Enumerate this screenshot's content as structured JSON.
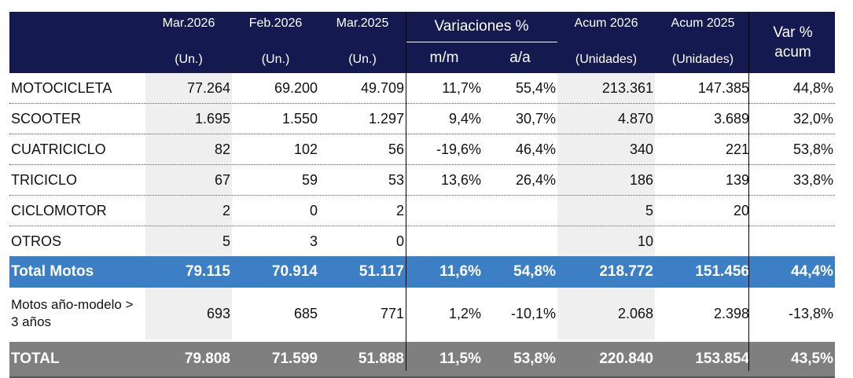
{
  "header": {
    "col1": {
      "top": "Mar.2026",
      "bottom": "(Un.)"
    },
    "col2": {
      "top": "Feb.2026",
      "bottom": "(Un.)"
    },
    "col3": {
      "top": "Mar.2025",
      "bottom": "(Un.)"
    },
    "variaciones": {
      "title": "Variaciones %",
      "mm": "m/m",
      "aa": "a/a"
    },
    "acum2026": {
      "top": "Acum 2026",
      "bottom": "(Unidades)"
    },
    "acum2025": {
      "top": "Acum 2025",
      "bottom": "(Unidades)"
    },
    "varacum": {
      "line1": "Var %",
      "line2": "acum"
    }
  },
  "rows": [
    {
      "label": "MOTOCICLETA",
      "v": [
        "77.264",
        "69.200",
        "49.709",
        "11,7%",
        "55,4%",
        "213.361",
        "147.385",
        "44,8%"
      ]
    },
    {
      "label": "SCOOTER",
      "v": [
        "1.695",
        "1.550",
        "1.297",
        "9,4%",
        "30,7%",
        "4.870",
        "3.689",
        "32,0%"
      ]
    },
    {
      "label": "CUATRICICLO",
      "v": [
        "82",
        "102",
        "56",
        "-19,6%",
        "46,4%",
        "340",
        "221",
        "53,8%"
      ]
    },
    {
      "label": "TRICICLO",
      "v": [
        "67",
        "59",
        "53",
        "13,6%",
        "26,4%",
        "186",
        "139",
        "33,8%"
      ]
    },
    {
      "label": "CICLOMOTOR",
      "v": [
        "2",
        "0",
        "2",
        "",
        "",
        "5",
        "20",
        ""
      ]
    },
    {
      "label": "OTROS",
      "v": [
        "5",
        "3",
        "0",
        "",
        "",
        "10",
        "",
        ""
      ]
    }
  ],
  "total_motos": {
    "label": "Total Motos",
    "v": [
      "79.115",
      "70.914",
      "51.117",
      "11,6%",
      "54,8%",
      "218.772",
      "151.456",
      "44,4%"
    ]
  },
  "motos_anio": {
    "label": "Motos año-modelo > 3 años",
    "v": [
      "693",
      "685",
      "771",
      "1,2%",
      "-10,1%",
      "2.068",
      "2.398",
      "-13,8%"
    ]
  },
  "total": {
    "label": "TOTAL",
    "v": [
      "79.808",
      "71.599",
      "51.888",
      "11,5%",
      "53,8%",
      "220.840",
      "153.854",
      "43,5%"
    ]
  },
  "colors": {
    "header_bg": "#141a4f",
    "total_motos_bg": "#3d7fc4",
    "total_bg": "#7f7f7f",
    "shade": "#efefef"
  }
}
